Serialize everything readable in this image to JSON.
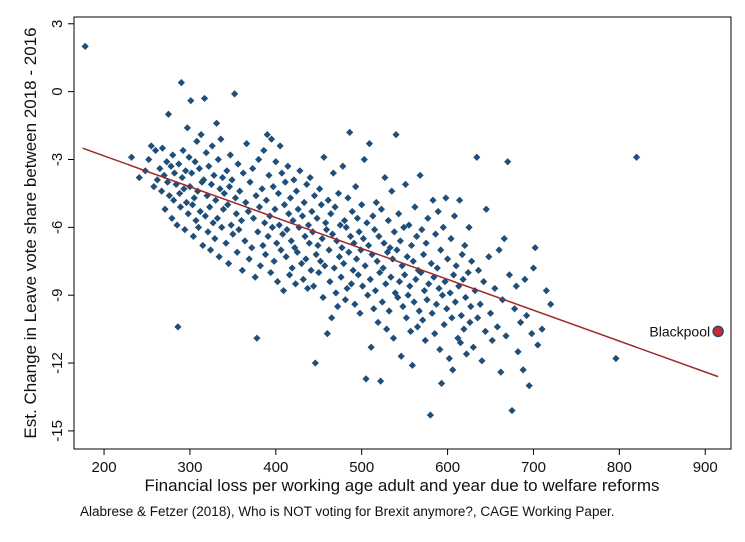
{
  "chart_data": {
    "type": "scatter",
    "xlabel": "Financial loss per working age adult and year due to welfare reforms",
    "ylabel": "Est. Change in Leave vote share between 2018 - 2016",
    "xlim": [
      165,
      930
    ],
    "ylim": [
      -15.8,
      3.3
    ],
    "x_ticks": [
      200,
      300,
      400,
      500,
      600,
      700,
      800,
      900
    ],
    "y_ticks": [
      3,
      0,
      -3,
      -6,
      -9,
      -12,
      -15
    ],
    "grid": false,
    "marker_color": "#1f4e79",
    "fit_color": "#9e2a2b",
    "fit_line": {
      "x": [
        175,
        915
      ],
      "y": [
        -2.5,
        -12.6
      ]
    },
    "highlight": {
      "x": 915,
      "y": -10.6,
      "label": "Blackpool",
      "color": "#d62728"
    },
    "points": [
      [
        178,
        2.0
      ],
      [
        232,
        -2.9
      ],
      [
        241,
        -3.8
      ],
      [
        248,
        -3.5
      ],
      [
        252,
        -3.0
      ],
      [
        255,
        -2.4
      ],
      [
        258,
        -4.2
      ],
      [
        260,
        -2.6
      ],
      [
        262,
        -3.9
      ],
      [
        265,
        -3.4
      ],
      [
        267,
        -4.4
      ],
      [
        268,
        -2.5
      ],
      [
        270,
        -3.7
      ],
      [
        271,
        -5.2
      ],
      [
        273,
        -3.1
      ],
      [
        274,
        -4.0
      ],
      [
        275,
        -1.0
      ],
      [
        276,
        -4.6
      ],
      [
        278,
        -3.3
      ],
      [
        279,
        -5.6
      ],
      [
        280,
        -2.8
      ],
      [
        281,
        -4.8
      ],
      [
        282,
        -3.6
      ],
      [
        284,
        -4.1
      ],
      [
        285,
        -5.9
      ],
      [
        286,
        -10.4
      ],
      [
        287,
        -3.2
      ],
      [
        288,
        -4.5
      ],
      [
        289,
        -5.1
      ],
      [
        290,
        0.4
      ],
      [
        291,
        -3.8
      ],
      [
        292,
        -2.6
      ],
      [
        293,
        -4.3
      ],
      [
        294,
        -6.1
      ],
      [
        295,
        -3.5
      ],
      [
        296,
        -4.9
      ],
      [
        297,
        -1.6
      ],
      [
        298,
        -5.4
      ],
      [
        299,
        -2.9
      ],
      [
        300,
        -4.2
      ],
      [
        301,
        -0.4
      ],
      [
        302,
        -3.6
      ],
      [
        303,
        -5.0
      ],
      [
        304,
        -6.4
      ],
      [
        305,
        -4.7
      ],
      [
        306,
        -3.1
      ],
      [
        307,
        -5.7
      ],
      [
        308,
        -2.2
      ],
      [
        309,
        -4.4
      ],
      [
        310,
        -6.0
      ],
      [
        311,
        -3.4
      ],
      [
        312,
        -5.3
      ],
      [
        313,
        -1.9
      ],
      [
        314,
        -4.0
      ],
      [
        315,
        -6.8
      ],
      [
        316,
        -3.9
      ],
      [
        317,
        -0.3
      ],
      [
        318,
        -5.5
      ],
      [
        319,
        -2.7
      ],
      [
        320,
        -4.6
      ],
      [
        321,
        -6.2
      ],
      [
        322,
        -3.3
      ],
      [
        323,
        -5.1
      ],
      [
        324,
        -7.0
      ],
      [
        325,
        -4.1
      ],
      [
        326,
        -2.4
      ],
      [
        327,
        -5.8
      ],
      [
        328,
        -3.7
      ],
      [
        329,
        -6.5
      ],
      [
        330,
        -4.8
      ],
      [
        331,
        -1.4
      ],
      [
        332,
        -5.6
      ],
      [
        333,
        -3.0
      ],
      [
        334,
        -7.3
      ],
      [
        335,
        -4.3
      ],
      [
        336,
        -2.1
      ],
      [
        337,
        -6.0
      ],
      [
        338,
        -3.8
      ],
      [
        339,
        -5.2
      ],
      [
        340,
        -4.5
      ],
      [
        342,
        -6.7
      ],
      [
        343,
        -3.5
      ],
      [
        344,
        -5.0
      ],
      [
        345,
        -7.6
      ],
      [
        346,
        -4.2
      ],
      [
        347,
        -2.8
      ],
      [
        348,
        -5.9
      ],
      [
        349,
        -3.9
      ],
      [
        350,
        -6.3
      ],
      [
        352,
        -0.1
      ],
      [
        353,
        -4.7
      ],
      [
        354,
        -5.4
      ],
      [
        355,
        -7.1
      ],
      [
        356,
        -3.2
      ],
      [
        357,
        -6.1
      ],
      [
        358,
        -4.4
      ],
      [
        360,
        -5.7
      ],
      [
        361,
        -7.9
      ],
      [
        362,
        -3.6
      ],
      [
        364,
        -6.6
      ],
      [
        365,
        -4.9
      ],
      [
        366,
        -2.3
      ],
      [
        368,
        -5.3
      ],
      [
        369,
        -7.4
      ],
      [
        370,
        -4.0
      ],
      [
        372,
        -6.9
      ],
      [
        373,
        -3.4
      ],
      [
        374,
        -5.6
      ],
      [
        376,
        -8.2
      ],
      [
        377,
        -4.6
      ],
      [
        378,
        -10.9
      ],
      [
        379,
        -6.2
      ],
      [
        380,
        -3.0
      ],
      [
        381,
        -5.1
      ],
      [
        382,
        -7.7
      ],
      [
        384,
        -4.3
      ],
      [
        385,
        -6.8
      ],
      [
        386,
        -2.6
      ],
      [
        387,
        -5.8
      ],
      [
        388,
        -7.2
      ],
      [
        389,
        -4.8
      ],
      [
        390,
        -1.9
      ],
      [
        391,
        -6.4
      ],
      [
        392,
        -3.7
      ],
      [
        393,
        -5.5
      ],
      [
        394,
        -8.0
      ],
      [
        395,
        -2.1
      ],
      [
        396,
        -6.0
      ],
      [
        397,
        -4.2
      ],
      [
        398,
        -7.5
      ],
      [
        399,
        -5.2
      ],
      [
        400,
        -3.1
      ],
      [
        401,
        -6.7
      ],
      [
        402,
        -8.4
      ],
      [
        403,
        -4.5
      ],
      [
        404,
        -5.9
      ],
      [
        405,
        -2.4
      ],
      [
        406,
        -7.0
      ],
      [
        407,
        -3.6
      ],
      [
        408,
        -6.3
      ],
      [
        409,
        -8.8
      ],
      [
        410,
        -5.0
      ],
      [
        411,
        -4.0
      ],
      [
        412,
        -7.3
      ],
      [
        413,
        -6.1
      ],
      [
        414,
        -3.3
      ],
      [
        415,
        -5.4
      ],
      [
        416,
        -8.1
      ],
      [
        417,
        -4.7
      ],
      [
        418,
        -6.6
      ],
      [
        419,
        -7.8
      ],
      [
        420,
        -5.7
      ],
      [
        421,
        -3.9
      ],
      [
        422,
        -6.9
      ],
      [
        423,
        -8.5
      ],
      [
        424,
        -4.4
      ],
      [
        425,
        -7.1
      ],
      [
        426,
        -5.2
      ],
      [
        427,
        -6.0
      ],
      [
        428,
        -3.5
      ],
      [
        430,
        -7.6
      ],
      [
        431,
        -5.5
      ],
      [
        432,
        -8.3
      ],
      [
        433,
        -4.9
      ],
      [
        434,
        -6.4
      ],
      [
        435,
        -7.4
      ],
      [
        436,
        -4.1
      ],
      [
        437,
        -8.7
      ],
      [
        438,
        -5.9
      ],
      [
        439,
        -6.7
      ],
      [
        440,
        -3.8
      ],
      [
        441,
        -7.9
      ],
      [
        442,
        -5.3
      ],
      [
        443,
        -6.2
      ],
      [
        444,
        -8.6
      ],
      [
        445,
        -4.6
      ],
      [
        446,
        -12.0
      ],
      [
        447,
        -7.2
      ],
      [
        448,
        -5.6
      ],
      [
        449,
        -6.8
      ],
      [
        450,
        -8.0
      ],
      [
        451,
        -4.3
      ],
      [
        452,
        -7.5
      ],
      [
        453,
        -5.0
      ],
      [
        454,
        -6.5
      ],
      [
        455,
        -9.1
      ],
      [
        456,
        -2.9
      ],
      [
        457,
        -7.7
      ],
      [
        458,
        -5.8
      ],
      [
        459,
        -6.1
      ],
      [
        460,
        -10.7
      ],
      [
        461,
        -4.8
      ],
      [
        462,
        -7.0
      ],
      [
        463,
        -8.4
      ],
      [
        464,
        -5.4
      ],
      [
        465,
        -10.0
      ],
      [
        466,
        -6.3
      ],
      [
        467,
        -3.6
      ],
      [
        468,
        -7.8
      ],
      [
        469,
        -5.1
      ],
      [
        470,
        -8.9
      ],
      [
        471,
        -6.6
      ],
      [
        472,
        -9.5
      ],
      [
        473,
        -4.5
      ],
      [
        474,
        -7.3
      ],
      [
        475,
        -5.9
      ],
      [
        476,
        -8.2
      ],
      [
        477,
        -6.9
      ],
      [
        478,
        -3.3
      ],
      [
        479,
        -7.6
      ],
      [
        480,
        -5.7
      ],
      [
        481,
        -9.2
      ],
      [
        482,
        -6.0
      ],
      [
        483,
        -8.7
      ],
      [
        484,
        -4.7
      ],
      [
        485,
        -7.1
      ],
      [
        486,
        -1.8
      ],
      [
        487,
        -6.4
      ],
      [
        488,
        -8.5
      ],
      [
        489,
        -5.3
      ],
      [
        490,
        -7.9
      ],
      [
        491,
        -6.7
      ],
      [
        492,
        -9.4
      ],
      [
        493,
        -4.2
      ],
      [
        494,
        -7.4
      ],
      [
        495,
        -5.6
      ],
      [
        496,
        -8.1
      ],
      [
        497,
        -6.2
      ],
      [
        498,
        -9.8
      ],
      [
        499,
        -7.0
      ],
      [
        500,
        -5.0
      ],
      [
        501,
        -8.6
      ],
      [
        502,
        -6.5
      ],
      [
        503,
        -3.0
      ],
      [
        504,
        -7.7
      ],
      [
        505,
        -12.7
      ],
      [
        506,
        -5.8
      ],
      [
        507,
        -9.0
      ],
      [
        508,
        -6.8
      ],
      [
        509,
        -2.3
      ],
      [
        510,
        -8.3
      ],
      [
        511,
        -11.3
      ],
      [
        512,
        -7.2
      ],
      [
        513,
        -5.5
      ],
      [
        514,
        -9.6
      ],
      [
        515,
        -6.1
      ],
      [
        516,
        -8.8
      ],
      [
        517,
        -4.9
      ],
      [
        518,
        -7.5
      ],
      [
        519,
        -10.2
      ],
      [
        520,
        -6.4
      ],
      [
        521,
        -8.0
      ],
      [
        522,
        -12.8
      ],
      [
        523,
        -5.2
      ],
      [
        524,
        -9.3
      ],
      [
        525,
        -7.8
      ],
      [
        526,
        -6.7
      ],
      [
        527,
        -3.8
      ],
      [
        528,
        -8.5
      ],
      [
        529,
        -10.5
      ],
      [
        530,
        -7.1
      ],
      [
        531,
        -5.7
      ],
      [
        532,
        -9.7
      ],
      [
        533,
        -6.9
      ],
      [
        534,
        -8.2
      ],
      [
        535,
        -4.4
      ],
      [
        536,
        -7.4
      ],
      [
        537,
        -10.9
      ],
      [
        538,
        -6.2
      ],
      [
        539,
        -8.9
      ],
      [
        540,
        -1.9
      ],
      [
        541,
        -7.0
      ],
      [
        542,
        -9.1
      ],
      [
        543,
        -5.4
      ],
      [
        544,
        -8.4
      ],
      [
        545,
        -6.6
      ],
      [
        546,
        -11.7
      ],
      [
        547,
        -7.7
      ],
      [
        548,
        -9.5
      ],
      [
        549,
        -6.0
      ],
      [
        550,
        -8.1
      ],
      [
        551,
        -4.1
      ],
      [
        552,
        -10.0
      ],
      [
        553,
        -7.3
      ],
      [
        554,
        -9.0
      ],
      [
        555,
        -5.9
      ],
      [
        556,
        -8.6
      ],
      [
        557,
        -10.6
      ],
      [
        558,
        -6.8
      ],
      [
        559,
        -12.1
      ],
      [
        560,
        -7.5
      ],
      [
        561,
        -9.3
      ],
      [
        562,
        -5.1
      ],
      [
        563,
        -8.3
      ],
      [
        564,
        -6.4
      ],
      [
        565,
        -10.4
      ],
      [
        566,
        -7.9
      ],
      [
        567,
        -9.7
      ],
      [
        568,
        -3.7
      ],
      [
        569,
        -8.0
      ],
      [
        570,
        -6.1
      ],
      [
        571,
        -10.1
      ],
      [
        572,
        -7.2
      ],
      [
        573,
        -8.8
      ],
      [
        574,
        -11.0
      ],
      [
        575,
        -6.7
      ],
      [
        576,
        -9.2
      ],
      [
        577,
        -5.6
      ],
      [
        578,
        -8.5
      ],
      [
        580,
        -14.3
      ],
      [
        581,
        -7.6
      ],
      [
        582,
        -9.8
      ],
      [
        583,
        -4.8
      ],
      [
        584,
        -8.2
      ],
      [
        585,
        -10.7
      ],
      [
        586,
        -6.3
      ],
      [
        587,
        -9.4
      ],
      [
        588,
        -7.8
      ],
      [
        589,
        -5.3
      ],
      [
        590,
        -8.7
      ],
      [
        591,
        -11.4
      ],
      [
        592,
        -7.0
      ],
      [
        593,
        -12.9
      ],
      [
        594,
        -9.0
      ],
      [
        595,
        -6.0
      ],
      [
        596,
        -10.3
      ],
      [
        597,
        -8.4
      ],
      [
        598,
        -4.7
      ],
      [
        599,
        -9.6
      ],
      [
        600,
        -7.4
      ],
      [
        602,
        -11.8
      ],
      [
        603,
        -8.9
      ],
      [
        604,
        -6.5
      ],
      [
        605,
        -10.0
      ],
      [
        606,
        -12.3
      ],
      [
        607,
        -8.1
      ],
      [
        608,
        -5.5
      ],
      [
        609,
        -9.3
      ],
      [
        610,
        -7.7
      ],
      [
        612,
        -10.9
      ],
      [
        613,
        -8.6
      ],
      [
        614,
        -4.8
      ],
      [
        615,
        -11.1
      ],
      [
        616,
        -9.9
      ],
      [
        617,
        -7.2
      ],
      [
        618,
        -8.3
      ],
      [
        619,
        -10.5
      ],
      [
        620,
        -6.8
      ],
      [
        621,
        -9.1
      ],
      [
        622,
        -11.6
      ],
      [
        624,
        -8.0
      ],
      [
        625,
        -6.0
      ],
      [
        626,
        -10.2
      ],
      [
        627,
        -9.5
      ],
      [
        628,
        -7.5
      ],
      [
        630,
        -11.3
      ],
      [
        632,
        -8.8
      ],
      [
        634,
        -2.9
      ],
      [
        635,
        -10.0
      ],
      [
        636,
        -7.9
      ],
      [
        638,
        -9.4
      ],
      [
        640,
        -11.9
      ],
      [
        642,
        -8.4
      ],
      [
        644,
        -10.6
      ],
      [
        645,
        -5.2
      ],
      [
        648,
        -7.3
      ],
      [
        650,
        -9.8
      ],
      [
        652,
        -11.0
      ],
      [
        655,
        -8.7
      ],
      [
        658,
        -10.4
      ],
      [
        660,
        -7.0
      ],
      [
        662,
        -12.4
      ],
      [
        664,
        -9.2
      ],
      [
        666,
        -6.5
      ],
      [
        668,
        -10.8
      ],
      [
        670,
        -3.1
      ],
      [
        672,
        -8.1
      ],
      [
        675,
        -14.1
      ],
      [
        678,
        -9.6
      ],
      [
        680,
        -8.6
      ],
      [
        682,
        -11.5
      ],
      [
        685,
        -10.2
      ],
      [
        688,
        -12.3
      ],
      [
        690,
        -8.3
      ],
      [
        692,
        -9.9
      ],
      [
        695,
        -13.0
      ],
      [
        698,
        -10.7
      ],
      [
        700,
        -7.8
      ],
      [
        702,
        -6.9
      ],
      [
        705,
        -11.2
      ],
      [
        710,
        -10.5
      ],
      [
        715,
        -8.8
      ],
      [
        720,
        -9.4
      ],
      [
        796,
        -11.8
      ],
      [
        820,
        -2.9
      ]
    ]
  },
  "annotation": {
    "blackpool_label": "Blackpool"
  },
  "footer": {
    "caption": "Alabrese & Fetzer (2018), Who is NOT voting for Brexit anymore?, CAGE Working Paper."
  }
}
